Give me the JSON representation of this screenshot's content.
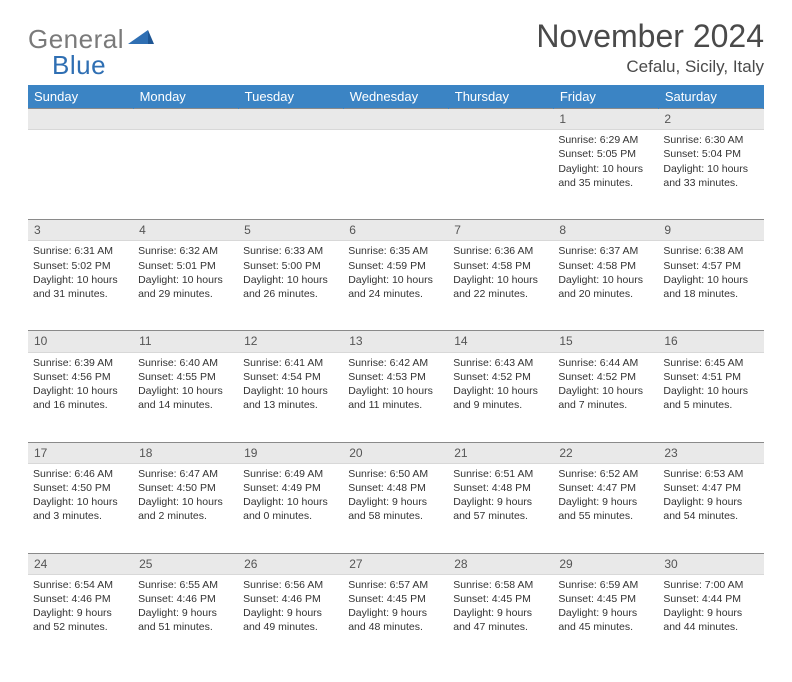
{
  "logo": {
    "word1": "General",
    "word2": "Blue",
    "mark_color": "#2f6fb3",
    "grey": "#7a7a7a"
  },
  "title": "November 2024",
  "location": "Cefalu, Sicily, Italy",
  "colors": {
    "header_bg": "#3b84c4",
    "header_text": "#ffffff",
    "dayband_bg": "#e9e9e9",
    "dayband_border_top": "#8a8a8a",
    "text": "#333333"
  },
  "font": {
    "family": "Arial",
    "title_size": 32,
    "location_size": 17,
    "th_size": 13,
    "daynum_size": 12,
    "cell_size": 10.5
  },
  "daysOfWeek": [
    "Sunday",
    "Monday",
    "Tuesday",
    "Wednesday",
    "Thursday",
    "Friday",
    "Saturday"
  ],
  "weeks": [
    [
      null,
      null,
      null,
      null,
      null,
      {
        "n": "1",
        "sunrise": "6:29 AM",
        "sunset": "5:05 PM",
        "dlh": "10",
        "dlm": "35"
      },
      {
        "n": "2",
        "sunrise": "6:30 AM",
        "sunset": "5:04 PM",
        "dlh": "10",
        "dlm": "33"
      }
    ],
    [
      {
        "n": "3",
        "sunrise": "6:31 AM",
        "sunset": "5:02 PM",
        "dlh": "10",
        "dlm": "31"
      },
      {
        "n": "4",
        "sunrise": "6:32 AM",
        "sunset": "5:01 PM",
        "dlh": "10",
        "dlm": "29"
      },
      {
        "n": "5",
        "sunrise": "6:33 AM",
        "sunset": "5:00 PM",
        "dlh": "10",
        "dlm": "26"
      },
      {
        "n": "6",
        "sunrise": "6:35 AM",
        "sunset": "4:59 PM",
        "dlh": "10",
        "dlm": "24"
      },
      {
        "n": "7",
        "sunrise": "6:36 AM",
        "sunset": "4:58 PM",
        "dlh": "10",
        "dlm": "22"
      },
      {
        "n": "8",
        "sunrise": "6:37 AM",
        "sunset": "4:58 PM",
        "dlh": "10",
        "dlm": "20"
      },
      {
        "n": "9",
        "sunrise": "6:38 AM",
        "sunset": "4:57 PM",
        "dlh": "10",
        "dlm": "18"
      }
    ],
    [
      {
        "n": "10",
        "sunrise": "6:39 AM",
        "sunset": "4:56 PM",
        "dlh": "10",
        "dlm": "16"
      },
      {
        "n": "11",
        "sunrise": "6:40 AM",
        "sunset": "4:55 PM",
        "dlh": "10",
        "dlm": "14"
      },
      {
        "n": "12",
        "sunrise": "6:41 AM",
        "sunset": "4:54 PM",
        "dlh": "10",
        "dlm": "13"
      },
      {
        "n": "13",
        "sunrise": "6:42 AM",
        "sunset": "4:53 PM",
        "dlh": "10",
        "dlm": "11"
      },
      {
        "n": "14",
        "sunrise": "6:43 AM",
        "sunset": "4:52 PM",
        "dlh": "10",
        "dlm": "9"
      },
      {
        "n": "15",
        "sunrise": "6:44 AM",
        "sunset": "4:52 PM",
        "dlh": "10",
        "dlm": "7"
      },
      {
        "n": "16",
        "sunrise": "6:45 AM",
        "sunset": "4:51 PM",
        "dlh": "10",
        "dlm": "5"
      }
    ],
    [
      {
        "n": "17",
        "sunrise": "6:46 AM",
        "sunset": "4:50 PM",
        "dlh": "10",
        "dlm": "3"
      },
      {
        "n": "18",
        "sunrise": "6:47 AM",
        "sunset": "4:50 PM",
        "dlh": "10",
        "dlm": "2"
      },
      {
        "n": "19",
        "sunrise": "6:49 AM",
        "sunset": "4:49 PM",
        "dlh": "10",
        "dlm": "0"
      },
      {
        "n": "20",
        "sunrise": "6:50 AM",
        "sunset": "4:48 PM",
        "dlh": "9",
        "dlm": "58"
      },
      {
        "n": "21",
        "sunrise": "6:51 AM",
        "sunset": "4:48 PM",
        "dlh": "9",
        "dlm": "57"
      },
      {
        "n": "22",
        "sunrise": "6:52 AM",
        "sunset": "4:47 PM",
        "dlh": "9",
        "dlm": "55"
      },
      {
        "n": "23",
        "sunrise": "6:53 AM",
        "sunset": "4:47 PM",
        "dlh": "9",
        "dlm": "54"
      }
    ],
    [
      {
        "n": "24",
        "sunrise": "6:54 AM",
        "sunset": "4:46 PM",
        "dlh": "9",
        "dlm": "52"
      },
      {
        "n": "25",
        "sunrise": "6:55 AM",
        "sunset": "4:46 PM",
        "dlh": "9",
        "dlm": "51"
      },
      {
        "n": "26",
        "sunrise": "6:56 AM",
        "sunset": "4:46 PM",
        "dlh": "9",
        "dlm": "49"
      },
      {
        "n": "27",
        "sunrise": "6:57 AM",
        "sunset": "4:45 PM",
        "dlh": "9",
        "dlm": "48"
      },
      {
        "n": "28",
        "sunrise": "6:58 AM",
        "sunset": "4:45 PM",
        "dlh": "9",
        "dlm": "47"
      },
      {
        "n": "29",
        "sunrise": "6:59 AM",
        "sunset": "4:45 PM",
        "dlh": "9",
        "dlm": "45"
      },
      {
        "n": "30",
        "sunrise": "7:00 AM",
        "sunset": "4:44 PM",
        "dlh": "9",
        "dlm": "44"
      }
    ]
  ],
  "labels": {
    "sunrise": "Sunrise:",
    "sunset": "Sunset:",
    "daylight": "Daylight:",
    "hours": "hours",
    "and": "and",
    "minutes": "minutes."
  }
}
